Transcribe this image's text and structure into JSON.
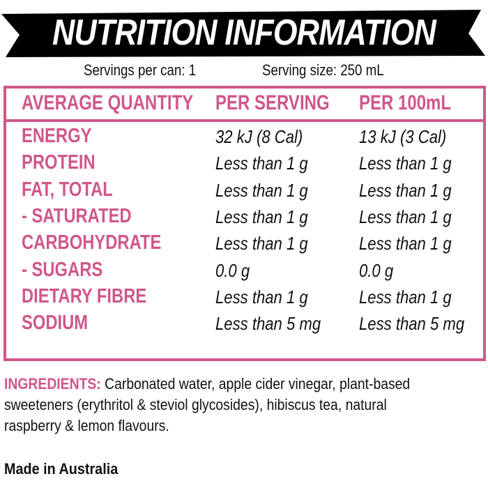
{
  "title": "NUTRITION INFORMATION",
  "servings_per_can": "Servings per can: 1",
  "serving_size": "Serving size: 250 mL",
  "accent_color": "#d0578a",
  "table": {
    "headers": [
      "AVERAGE QUANTITY",
      "PER SERVING",
      "PER 100mL"
    ],
    "rows": [
      {
        "label": "ENERGY",
        "per_serving": "32 kJ (8 Cal)",
        "per_100ml": "13 kJ (3 Cal)"
      },
      {
        "label": "PROTEIN",
        "per_serving": "Less than 1 g",
        "per_100ml": "Less than 1 g"
      },
      {
        "label": "FAT, TOTAL",
        "per_serving": "Less than 1 g",
        "per_100ml": "Less than 1 g"
      },
      {
        "label": "- SATURATED",
        "per_serving": "Less than 1 g",
        "per_100ml": "Less than 1 g"
      },
      {
        "label": "CARBOHYDRATE",
        "per_serving": "Less than 1 g",
        "per_100ml": "Less than 1 g"
      },
      {
        "label": "- SUGARS",
        "per_serving": "0.0 g",
        "per_100ml": "0.0 g"
      },
      {
        "label": "DIETARY FIBRE",
        "per_serving": "Less than 1 g",
        "per_100ml": "Less than 1 g"
      },
      {
        "label": "SODIUM",
        "per_serving": "Less than 5 mg",
        "per_100ml": "Less than 5 mg"
      }
    ]
  },
  "ingredients": {
    "label": "INGREDIENTS:",
    "text": "Carbonated water, apple cider vinegar, plant-based sweeteners (erythritol & steviol glycosides), hibiscus tea, natural raspberry & lemon flavours."
  },
  "origin": "Made in Australia"
}
